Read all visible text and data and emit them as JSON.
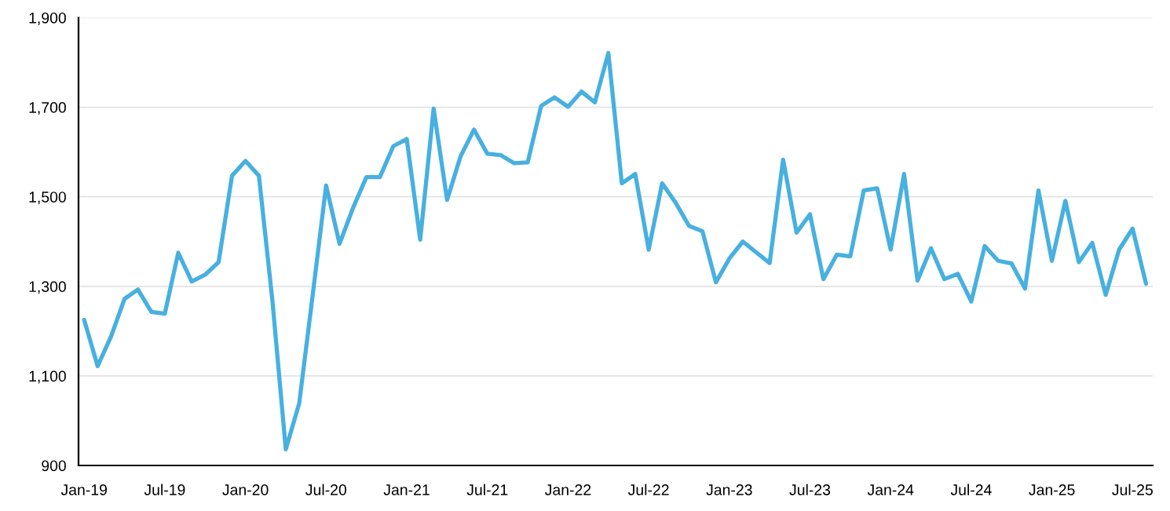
{
  "chart_data": {
    "type": "line",
    "categories": [
      "Jan-19",
      null,
      null,
      null,
      null,
      null,
      "Jul-19",
      null,
      null,
      null,
      null,
      null,
      "Jan-20",
      null,
      null,
      null,
      null,
      null,
      "Jul-20",
      null,
      null,
      null,
      null,
      null,
      "Jan-21",
      null,
      null,
      null,
      null,
      null,
      "Jul-21",
      null,
      null,
      null,
      null,
      null,
      "Jan-22",
      null,
      null,
      null,
      null,
      null,
      "Jul-22",
      null,
      null,
      null,
      null,
      null,
      "Jan-23",
      null,
      null,
      null,
      null,
      null,
      "Jul-23",
      null,
      null,
      null,
      null,
      null,
      "Jan-24",
      null,
      null,
      null,
      null,
      null,
      "Jul-24",
      null,
      null,
      null,
      null,
      null,
      "Jan-25",
      null,
      null,
      null,
      null,
      null,
      "Jul-25",
      null
    ],
    "series": [
      {
        "color": "#47b0e0",
        "values": [
          1225,
          1122,
          1188,
          1272,
          1293,
          1243,
          1239,
          1375,
          1311,
          1326,
          1354,
          1547,
          1580,
          1547,
          1270,
          936,
          1039,
          1280,
          1525,
          1395,
          1475,
          1544,
          1544,
          1613,
          1629,
          1404,
          1697,
          1493,
          1590,
          1650,
          1596,
          1593,
          1575,
          1577,
          1703,
          1722,
          1701,
          1735,
          1711,
          1821,
          1530,
          1551,
          1382,
          1530,
          1487,
          1435,
          1423,
          1309,
          1362,
          1400,
          1376,
          1352,
          1583,
          1420,
          1461,
          1316,
          1371,
          1367,
          1514,
          1519,
          1382,
          1551,
          1313,
          1385,
          1316,
          1328,
          1266,
          1390,
          1357,
          1351,
          1295,
          1514,
          1357,
          1491,
          1354,
          1397,
          1281,
          1382,
          1429,
          1306
        ]
      }
    ],
    "ylim": [
      900,
      1900
    ],
    "yticks": [
      {
        "value": 900,
        "label": "900"
      },
      {
        "value": 1100,
        "label": "1,100"
      },
      {
        "value": 1300,
        "label": "1,300"
      },
      {
        "value": 1500,
        "label": "1,500"
      },
      {
        "value": 1700,
        "label": "1,700"
      },
      {
        "value": 1900,
        "label": "1,900"
      }
    ],
    "grid": "y"
  }
}
